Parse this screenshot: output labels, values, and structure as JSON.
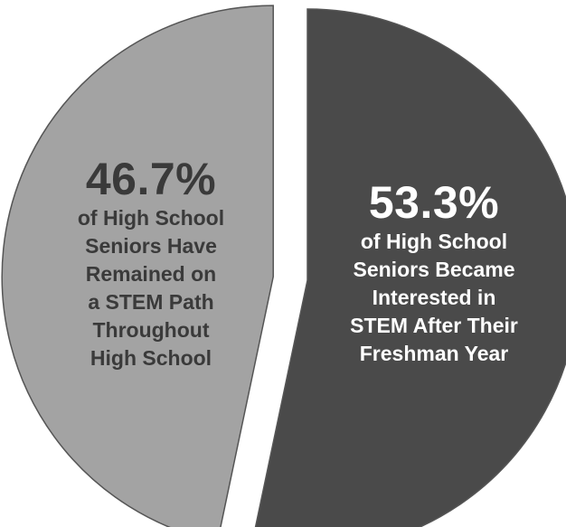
{
  "chart_data": {
    "type": "pie",
    "slices": [
      {
        "value": 53.3,
        "value_label": "53.3%",
        "description_lines": [
          "of High School",
          "Seniors Became",
          "Interested in",
          "STEM After Their",
          "Freshman Year"
        ],
        "color": "#4a4a4a",
        "exploded": false
      },
      {
        "value": 46.7,
        "value_label": "46.7%",
        "description_lines": [
          "of High School",
          "Seniors Have",
          "Remained on",
          "a STEM Path",
          "Throughout",
          "High School"
        ],
        "color": "#a3a3a3",
        "exploded": true
      }
    ]
  }
}
